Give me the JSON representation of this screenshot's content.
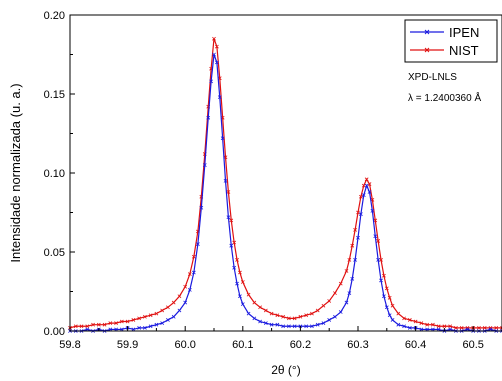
{
  "chart_data": {
    "type": "line",
    "title": "",
    "xlabel": "2θ (°)",
    "ylabel": "Intensidade normalizada (u. a.)",
    "xlim": [
      59.8,
      60.55
    ],
    "ylim": [
      0,
      0.2
    ],
    "xticks": [
      59.8,
      59.9,
      60.0,
      60.1,
      60.2,
      60.3,
      60.4,
      60.5
    ],
    "xtick_labels": [
      "59.8",
      "59.9",
      "60.0",
      "60.1",
      "60.2",
      "60.3",
      "60.4",
      "60.5"
    ],
    "yticks": [
      0,
      0.05,
      0.1,
      0.15,
      0.2
    ],
    "ytick_labels": [
      "0.00",
      "0.05",
      "0.10",
      "0.15",
      "0.20"
    ],
    "grid": false,
    "legend_position": "top-right",
    "annotations": [
      {
        "text": "XPD-LNLS"
      },
      {
        "text": "λ = 1.2400360 Å"
      }
    ],
    "series": [
      {
        "name": "IPEN",
        "color": "#1a1adf",
        "marker": "x",
        "x": [
          59.8,
          59.81,
          59.82,
          59.83,
          59.84,
          59.85,
          59.86,
          59.87,
          59.88,
          59.89,
          59.9,
          59.91,
          59.92,
          59.93,
          59.94,
          59.95,
          59.96,
          59.97,
          59.98,
          59.99,
          60.0,
          60.008,
          60.015,
          60.022,
          60.028,
          60.034,
          60.04,
          60.045,
          60.05,
          60.055,
          60.06,
          60.065,
          60.07,
          60.075,
          60.08,
          60.085,
          60.09,
          60.095,
          60.1,
          60.11,
          60.12,
          60.13,
          60.14,
          60.15,
          60.16,
          60.17,
          60.18,
          60.19,
          60.2,
          60.21,
          60.22,
          60.23,
          60.24,
          60.25,
          60.26,
          60.27,
          60.28,
          60.285,
          60.29,
          60.295,
          60.3,
          60.305,
          60.31,
          60.315,
          60.32,
          60.325,
          60.33,
          60.335,
          60.34,
          60.345,
          60.35,
          60.355,
          60.36,
          60.37,
          60.38,
          60.39,
          60.4,
          60.41,
          60.42,
          60.43,
          60.44,
          60.45,
          60.46,
          60.47,
          60.48,
          60.49,
          60.5,
          60.51,
          60.52,
          60.53,
          60.54,
          60.55
        ],
        "y": [
          0.0,
          0.0,
          0.0,
          0.001,
          0.0,
          0.001,
          0.0,
          0.001,
          0.001,
          0.001,
          0.002,
          0.001,
          0.002,
          0.002,
          0.003,
          0.004,
          0.005,
          0.007,
          0.009,
          0.013,
          0.018,
          0.026,
          0.037,
          0.055,
          0.078,
          0.105,
          0.135,
          0.158,
          0.175,
          0.17,
          0.148,
          0.122,
          0.095,
          0.072,
          0.054,
          0.04,
          0.03,
          0.022,
          0.017,
          0.011,
          0.008,
          0.006,
          0.005,
          0.004,
          0.004,
          0.003,
          0.003,
          0.003,
          0.003,
          0.003,
          0.003,
          0.004,
          0.005,
          0.007,
          0.009,
          0.012,
          0.018,
          0.024,
          0.033,
          0.045,
          0.059,
          0.074,
          0.086,
          0.092,
          0.088,
          0.076,
          0.06,
          0.045,
          0.032,
          0.022,
          0.015,
          0.01,
          0.007,
          0.004,
          0.003,
          0.002,
          0.002,
          0.001,
          0.001,
          0.001,
          0.001,
          0.0,
          0.001,
          0.0,
          0.0,
          0.001,
          0.0,
          0.0,
          0.0,
          0.001,
          0.0,
          0.0
        ]
      },
      {
        "name": "NIST",
        "color": "#e01010",
        "marker": "x",
        "x": [
          59.8,
          59.81,
          59.82,
          59.83,
          59.84,
          59.85,
          59.86,
          59.87,
          59.88,
          59.89,
          59.9,
          59.91,
          59.92,
          59.93,
          59.94,
          59.95,
          59.96,
          59.97,
          59.98,
          59.99,
          60.0,
          60.008,
          60.015,
          60.022,
          60.028,
          60.034,
          60.04,
          60.045,
          60.05,
          60.055,
          60.06,
          60.065,
          60.07,
          60.075,
          60.08,
          60.085,
          60.09,
          60.095,
          60.1,
          60.11,
          60.12,
          60.13,
          60.14,
          60.15,
          60.16,
          60.17,
          60.18,
          60.19,
          60.2,
          60.21,
          60.22,
          60.23,
          60.24,
          60.25,
          60.26,
          60.27,
          60.28,
          60.285,
          60.29,
          60.295,
          60.3,
          60.305,
          60.31,
          60.315,
          60.32,
          60.325,
          60.33,
          60.335,
          60.34,
          60.345,
          60.35,
          60.355,
          60.36,
          60.37,
          60.38,
          60.39,
          60.4,
          60.41,
          60.42,
          60.43,
          60.44,
          60.45,
          60.46,
          60.47,
          60.48,
          60.49,
          60.5,
          60.51,
          60.52,
          60.53,
          60.54,
          60.55
        ],
        "y": [
          0.002,
          0.003,
          0.003,
          0.003,
          0.004,
          0.004,
          0.004,
          0.005,
          0.005,
          0.006,
          0.006,
          0.007,
          0.008,
          0.009,
          0.01,
          0.011,
          0.013,
          0.015,
          0.018,
          0.022,
          0.028,
          0.036,
          0.047,
          0.063,
          0.085,
          0.112,
          0.142,
          0.166,
          0.185,
          0.18,
          0.16,
          0.135,
          0.11,
          0.088,
          0.07,
          0.056,
          0.045,
          0.037,
          0.031,
          0.023,
          0.018,
          0.015,
          0.013,
          0.011,
          0.01,
          0.009,
          0.008,
          0.008,
          0.009,
          0.01,
          0.011,
          0.013,
          0.016,
          0.019,
          0.024,
          0.03,
          0.038,
          0.045,
          0.054,
          0.064,
          0.075,
          0.085,
          0.092,
          0.096,
          0.093,
          0.083,
          0.07,
          0.057,
          0.045,
          0.035,
          0.027,
          0.021,
          0.016,
          0.011,
          0.008,
          0.007,
          0.006,
          0.005,
          0.004,
          0.004,
          0.003,
          0.003,
          0.003,
          0.002,
          0.002,
          0.002,
          0.002,
          0.002,
          0.002,
          0.002,
          0.002,
          0.002
        ]
      }
    ]
  }
}
